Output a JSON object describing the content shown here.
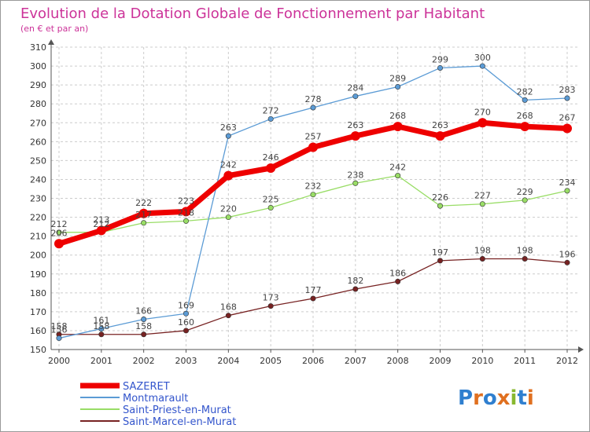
{
  "chart_data": {
    "type": "line",
    "title": "Evolution de la Dotation Globale de Fonctionnement par Habitant",
    "subtitle": "(en € et par an)",
    "xlabel": "",
    "ylabel": "",
    "x": [
      "2000",
      "2001",
      "2002",
      "2003",
      "2004",
      "2005",
      "2006",
      "2007",
      "2008",
      "2009",
      "2010",
      "2011",
      "2012"
    ],
    "ylim": [
      150,
      310
    ],
    "yticks": [
      150,
      160,
      170,
      180,
      190,
      200,
      210,
      220,
      230,
      240,
      250,
      260,
      270,
      280,
      290,
      300,
      310
    ],
    "grid": true,
    "legend_position": "bottom-left",
    "series": [
      {
        "name": "SAZERET",
        "color": "#ee0000",
        "values": [
          206,
          213,
          222,
          223,
          242,
          246,
          257,
          263,
          268,
          263,
          270,
          268,
          267
        ]
      },
      {
        "name": "Montmarault",
        "color": "#5b9bd5",
        "values": [
          156,
          161,
          166,
          169,
          263,
          272,
          278,
          284,
          289,
          299,
          300,
          282,
          283
        ]
      },
      {
        "name": "Saint-Priest-en-Murat",
        "color": "#99dd66",
        "values": [
          212,
          212,
          217,
          218,
          220,
          225,
          232,
          238,
          242,
          226,
          227,
          229,
          234
        ]
      },
      {
        "name": "Saint-Marcel-en-Murat",
        "color": "#772222",
        "values": [
          158,
          158,
          158,
          160,
          168,
          173,
          177,
          182,
          186,
          197,
          198,
          198,
          196
        ]
      }
    ],
    "colors": {
      "title": "#cc3399",
      "legend_text": "#3355cc",
      "axis": "#888888",
      "grid": "#cccccc",
      "label": "#555555"
    }
  },
  "logo": {
    "text": "Proxiti"
  }
}
